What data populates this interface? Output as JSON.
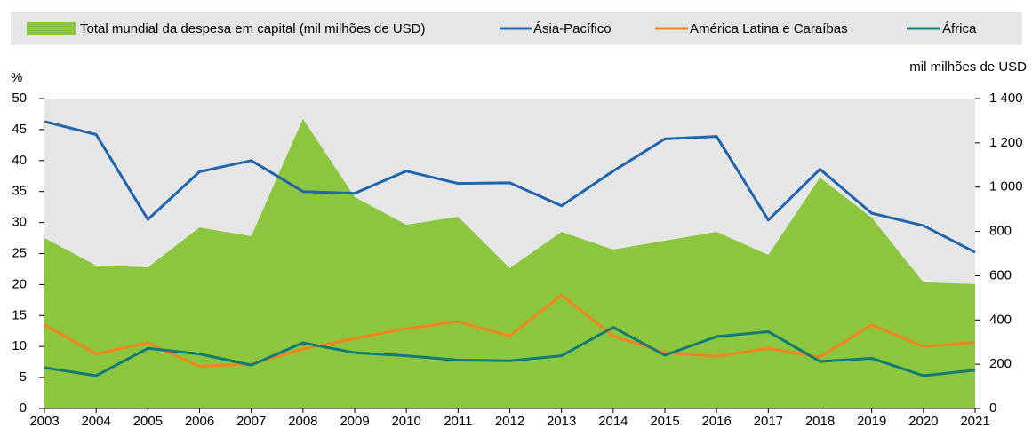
{
  "chart_data": {
    "type": "combo",
    "categories": [
      "2003",
      "2004",
      "2005",
      "2006",
      "2007",
      "2008",
      "2009",
      "2010",
      "2011",
      "2012",
      "2013",
      "2014",
      "2015",
      "2016",
      "2017",
      "2018",
      "2019",
      "2020",
      "2021"
    ],
    "series": [
      {
        "name": "Total mundial da despesa em capital (mil milhões de USD)",
        "type": "area",
        "axis": "y2",
        "color": "#8cc63f",
        "values": [
          770,
          646,
          638,
          818,
          778,
          1308,
          955,
          830,
          866,
          634,
          798,
          718,
          758,
          798,
          694,
          1043,
          862,
          570,
          562
        ]
      },
      {
        "name": "Ásia-Pacífico",
        "type": "line",
        "color": "#1f64ad",
        "values": [
          46.3,
          44.2,
          30.5,
          38.2,
          40.0,
          35.0,
          34.7,
          38.3,
          36.3,
          36.4,
          32.7,
          38.3,
          43.5,
          43.9,
          30.4,
          38.6,
          31.5,
          29.5,
          25.2
        ]
      },
      {
        "name": "América Latina e Caraíbas",
        "type": "line",
        "color": "#f5821f",
        "values": [
          13.5,
          8.8,
          10.6,
          6.8,
          7.2,
          9.6,
          11.3,
          12.9,
          14.0,
          11.7,
          18.3,
          11.7,
          9.0,
          8.4,
          9.7,
          8.3,
          13.5,
          10.0,
          10.7
        ]
      },
      {
        "name": "África",
        "type": "line",
        "color": "#117a73",
        "values": [
          6.6,
          5.3,
          9.7,
          8.8,
          7.0,
          10.6,
          9.0,
          8.5,
          7.8,
          7.7,
          8.5,
          13.1,
          8.6,
          11.6,
          12.4,
          7.6,
          8.1,
          5.3,
          6.2
        ]
      }
    ],
    "y_label": "%",
    "y2_label": "mil milhões de USD",
    "ylim": [
      0,
      50
    ],
    "yticks": [
      0,
      5,
      10,
      15,
      20,
      25,
      30,
      35,
      40,
      45,
      50
    ],
    "y2lim": [
      0,
      1400
    ],
    "y2ticks": [
      0,
      200,
      400,
      600,
      800,
      {
        "value": 1000,
        "label": "1 000"
      },
      {
        "value": 1200,
        "label": "1 200"
      },
      {
        "value": 1400,
        "label": "1 400"
      }
    ],
    "grid": true
  }
}
